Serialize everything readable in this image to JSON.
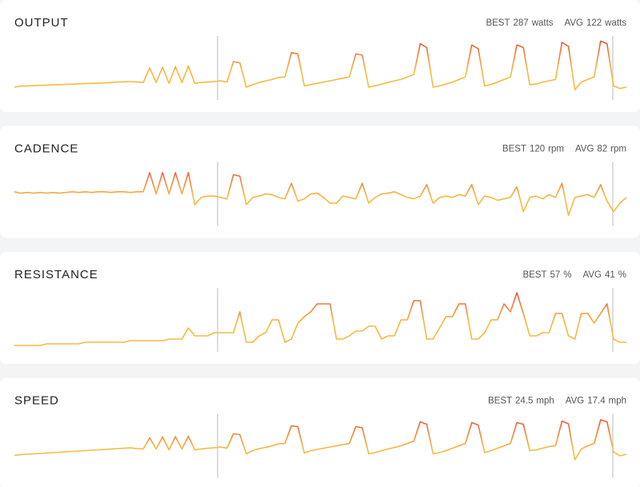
{
  "gradient": {
    "low": "#f7b940",
    "high": "#e8453a"
  },
  "panels": [
    {
      "title": "OUTPUT",
      "best": {
        "label": "BEST",
        "value": 287,
        "unit": "watts"
      },
      "avg": {
        "label": "AVG",
        "value": 122,
        "unit": "watts"
      },
      "ylim": [
        50,
        300
      ],
      "values": [
        100,
        104,
        105,
        106,
        107,
        108,
        109,
        110,
        111,
        112,
        113,
        114,
        115,
        116,
        117,
        118,
        120,
        121,
        122,
        120,
        118,
        175,
        118,
        178,
        115,
        180,
        118,
        182,
        115,
        118,
        120,
        122,
        125,
        120,
        200,
        195,
        100,
        110,
        118,
        125,
        130,
        138,
        140,
        235,
        230,
        105,
        110,
        115,
        120,
        125,
        130,
        135,
        140,
        230,
        225,
        100,
        105,
        112,
        118,
        125,
        130,
        140,
        150,
        270,
        255,
        100,
        105,
        112,
        120,
        130,
        140,
        265,
        250,
        105,
        110,
        120,
        130,
        140,
        265,
        255,
        110,
        112,
        120,
        125,
        130,
        275,
        260,
        90,
        120,
        130,
        140,
        280,
        270,
        105,
        95,
        100
      ]
    },
    {
      "title": "CADENCE",
      "best": {
        "label": "BEST",
        "value": 120,
        "unit": "rpm"
      },
      "avg": {
        "label": "AVG",
        "value": 82,
        "unit": "rpm"
      },
      "ylim": [
        40,
        130
      ],
      "values": [
        88,
        86,
        87,
        86,
        87,
        86,
        87,
        86,
        87,
        88,
        87,
        88,
        87,
        88,
        88,
        87,
        88,
        88,
        87,
        88,
        88,
        115,
        85,
        115,
        85,
        115,
        85,
        115,
        70,
        80,
        82,
        82,
        80,
        78,
        112,
        110,
        70,
        80,
        82,
        85,
        84,
        80,
        78,
        100,
        75,
        78,
        85,
        86,
        80,
        72,
        72,
        82,
        80,
        78,
        100,
        72,
        80,
        85,
        86,
        88,
        84,
        80,
        78,
        82,
        98,
        72,
        80,
        82,
        80,
        84,
        82,
        98,
        70,
        82,
        80,
        76,
        78,
        80,
        95,
        60,
        80,
        82,
        78,
        84,
        80,
        100,
        55,
        80,
        82,
        84,
        80,
        98,
        75,
        60,
        72,
        80
      ]
    },
    {
      "title": "RESISTANCE",
      "best": {
        "label": "BEST",
        "value": 57,
        "unit": "%"
      },
      "avg": {
        "label": "AVG",
        "value": 41,
        "unit": "%"
      },
      "ylim": [
        20,
        60
      ],
      "values": [
        24,
        24,
        24,
        24,
        24,
        25,
        25,
        25,
        25,
        25,
        25,
        26,
        26,
        26,
        26,
        26,
        26,
        26,
        27,
        27,
        27,
        27,
        27,
        27,
        28,
        28,
        28,
        35,
        30,
        30,
        30,
        32,
        32,
        32,
        32,
        45,
        26,
        26,
        30,
        32,
        40,
        40,
        26,
        28,
        38,
        42,
        45,
        50,
        50,
        50,
        28,
        28,
        30,
        33,
        33,
        36,
        36,
        28,
        30,
        30,
        40,
        40,
        52,
        52,
        28,
        28,
        35,
        42,
        42,
        50,
        50,
        28,
        28,
        32,
        40,
        40,
        50,
        45,
        57,
        44,
        30,
        30,
        32,
        32,
        44,
        44,
        30,
        28,
        44,
        44,
        38,
        44,
        50,
        28,
        26,
        26
      ]
    },
    {
      "title": "SPEED",
      "best": {
        "label": "BEST",
        "value": 24.5,
        "unit": "mph"
      },
      "avg": {
        "label": "AVG",
        "value": 17.4,
        "unit": "mph"
      },
      "ylim": [
        10,
        26
      ],
      "values": [
        15.6,
        15.8,
        15.9,
        16.0,
        16.1,
        16.2,
        16.3,
        16.4,
        16.5,
        16.6,
        16.7,
        16.8,
        16.9,
        17.0,
        17.1,
        17.2,
        17.3,
        17.4,
        17.5,
        17.3,
        17.2,
        20.0,
        17.2,
        20.2,
        17.0,
        20.3,
        17.2,
        20.4,
        17.0,
        17.2,
        17.4,
        17.5,
        17.7,
        17.4,
        21.0,
        20.8,
        16.0,
        16.8,
        17.3,
        17.6,
        18.0,
        18.5,
        18.6,
        23.0,
        22.8,
        16.2,
        16.8,
        17.1,
        17.4,
        17.7,
        18.0,
        18.3,
        18.6,
        22.8,
        22.5,
        16.0,
        16.3,
        16.8,
        17.2,
        17.6,
        18.0,
        18.6,
        19.2,
        24.0,
        23.4,
        16.0,
        16.3,
        16.8,
        17.4,
        18.0,
        18.6,
        23.8,
        23.2,
        16.3,
        16.8,
        17.4,
        18.0,
        18.6,
        23.8,
        23.4,
        16.8,
        17.0,
        17.4,
        17.8,
        18.0,
        24.2,
        23.5,
        14.5,
        17.2,
        18.0,
        18.6,
        24.5,
        24.0,
        16.5,
        15.5,
        15.9
      ]
    }
  ]
}
